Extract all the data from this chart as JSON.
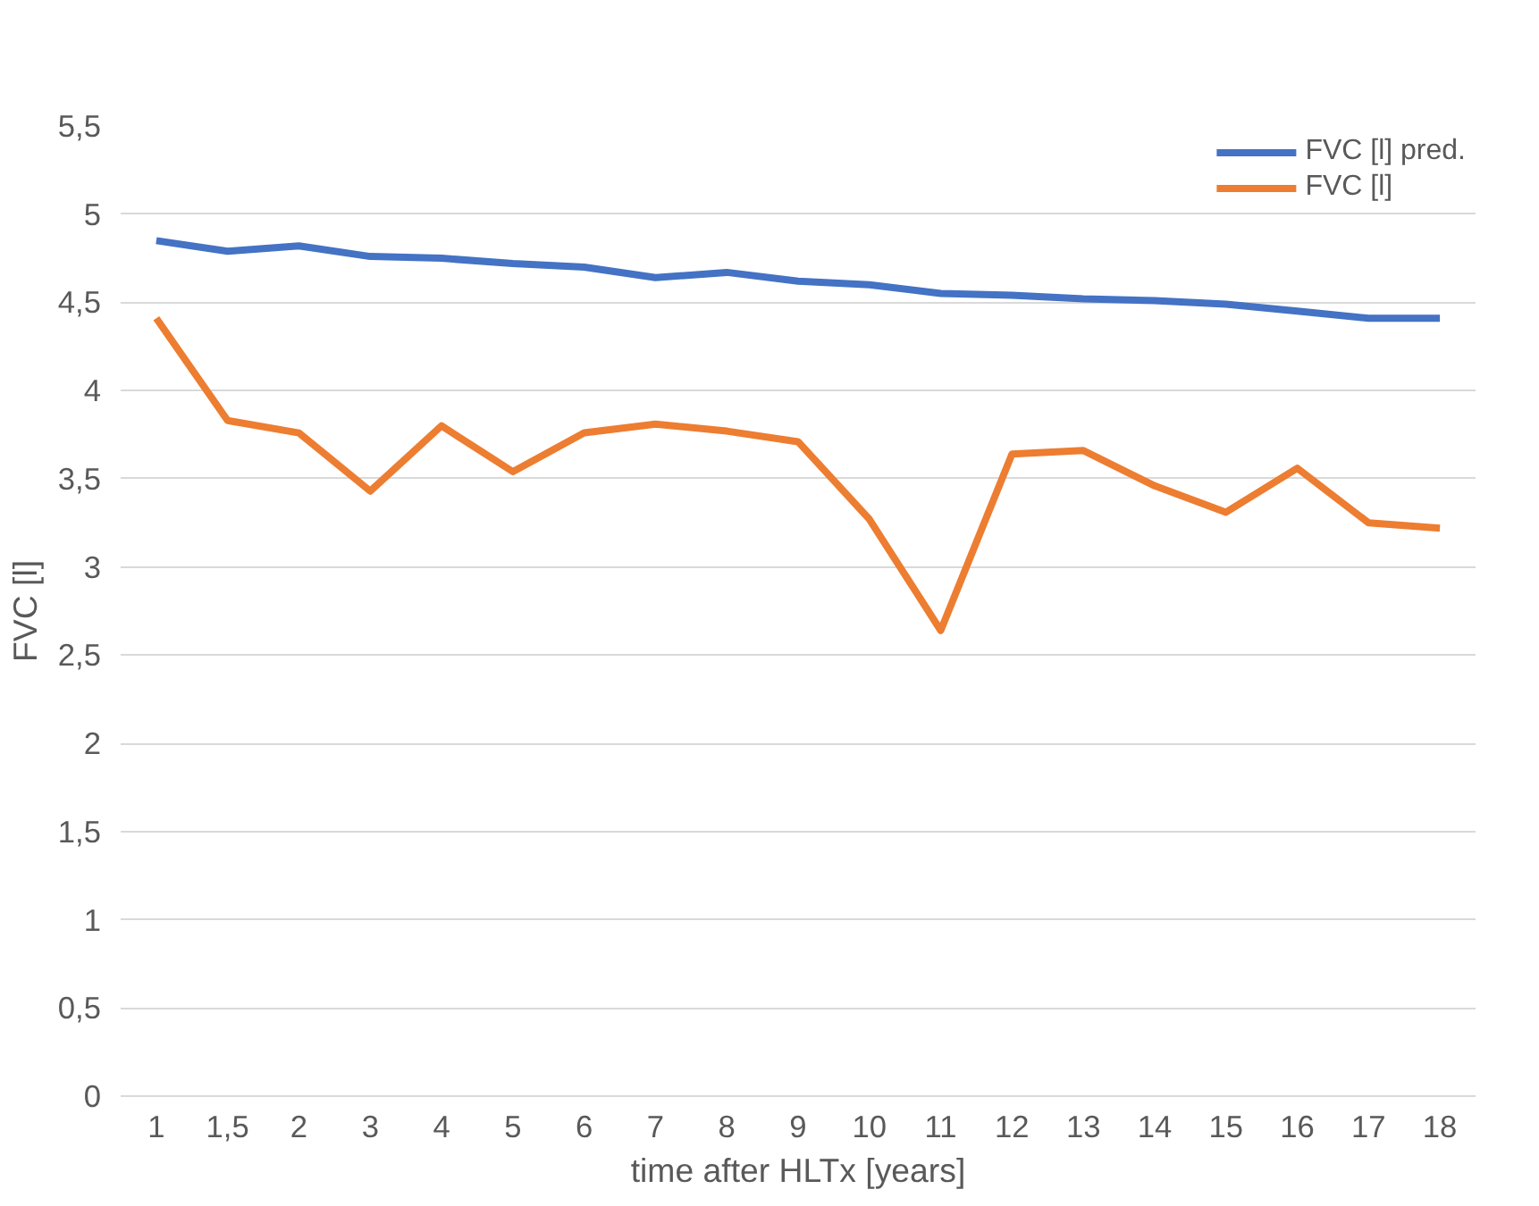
{
  "chart_data": {
    "type": "line",
    "xlabel": "time after HLTx [years]",
    "ylabel": "FVC [l]",
    "categories": [
      "1",
      "1,5",
      "2",
      "3",
      "4",
      "5",
      "6",
      "7",
      "8",
      "9",
      "10",
      "11",
      "12",
      "13",
      "14",
      "15",
      "16",
      "17",
      "18"
    ],
    "series": [
      {
        "name": "FVC [l] pred.",
        "color": "#4472c4",
        "values": [
          4.85,
          4.79,
          4.82,
          4.76,
          4.75,
          4.72,
          4.7,
          4.64,
          4.67,
          4.62,
          4.6,
          4.55,
          4.54,
          4.52,
          4.51,
          4.49,
          4.45,
          4.41,
          4.41
        ]
      },
      {
        "name": "FVC [l]",
        "color": "#ed7d31",
        "values": [
          4.41,
          3.83,
          3.76,
          3.43,
          3.8,
          3.54,
          3.76,
          3.81,
          3.77,
          3.71,
          3.27,
          2.64,
          3.64,
          3.66,
          3.46,
          3.31,
          3.56,
          3.25,
          3.22
        ]
      }
    ],
    "ylim": [
      0,
      5.5
    ],
    "yticks": [
      0,
      {
        "value": 0.5,
        "label": "0,5"
      },
      1,
      {
        "value": 1.5,
        "label": "1,5"
      },
      2,
      {
        "value": 2.5,
        "label": "2,5"
      },
      3,
      {
        "value": 3.5,
        "label": "3,5"
      },
      4,
      {
        "value": 4.5,
        "label": "4,5"
      },
      5,
      {
        "value": 5.5,
        "label": "5,5"
      }
    ],
    "grid": "y",
    "legend": "top right",
    "marker": "none",
    "line_style": "solid"
  }
}
